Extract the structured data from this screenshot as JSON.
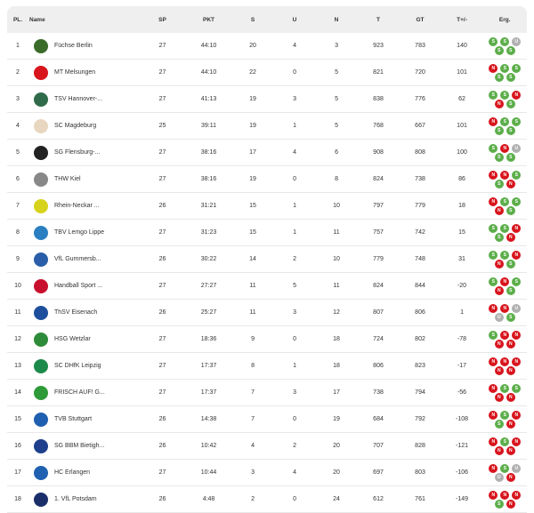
{
  "headers": {
    "pl": "PL.",
    "name": "Name",
    "sp": "SP",
    "pkt": "PKT",
    "s": "S",
    "u": "U",
    "n": "N",
    "t": "T",
    "gt": "GT",
    "diff": "T+/-",
    "erg": "Erg."
  },
  "colors": {
    "S": "#5cae4a",
    "N": "#d8141c",
    "U": "#b0b0b0"
  },
  "rows": [
    {
      "pl": "1",
      "name": "Füchse Berlin",
      "sp": "27",
      "pkt": "44:10",
      "s": "20",
      "u": "4",
      "n": "3",
      "t": "923",
      "gt": "783",
      "diff": "140",
      "form": [
        "S",
        "S",
        "U",
        "S",
        "S"
      ],
      "logo": "#3a6b2a"
    },
    {
      "pl": "2",
      "name": "MT Melsungen",
      "sp": "27",
      "pkt": "44:10",
      "s": "22",
      "u": "0",
      "n": "5",
      "t": "821",
      "gt": "720",
      "diff": "101",
      "form": [
        "N",
        "S",
        "S",
        "S",
        "S"
      ],
      "logo": "#d8141c"
    },
    {
      "pl": "3",
      "name": "TSV Hannover-...",
      "sp": "27",
      "pkt": "41:13",
      "s": "19",
      "u": "3",
      "n": "5",
      "t": "838",
      "gt": "776",
      "diff": "62",
      "form": [
        "S",
        "S",
        "N",
        "N",
        "S"
      ],
      "logo": "#2f6b4a"
    },
    {
      "pl": "4",
      "name": "SC Magdeburg",
      "sp": "25",
      "pkt": "39:11",
      "s": "19",
      "u": "1",
      "n": "5",
      "t": "768",
      "gt": "667",
      "diff": "101",
      "form": [
        "N",
        "S",
        "S",
        "S",
        "S"
      ],
      "logo": "#e9d6c0"
    },
    {
      "pl": "5",
      "name": "SG Flensburg-...",
      "sp": "27",
      "pkt": "38:16",
      "s": "17",
      "u": "4",
      "n": "6",
      "t": "908",
      "gt": "808",
      "diff": "100",
      "form": [
        "S",
        "N",
        "U",
        "S",
        "S"
      ],
      "logo": "#222"
    },
    {
      "pl": "6",
      "name": "THW Kiel",
      "sp": "27",
      "pkt": "38:16",
      "s": "19",
      "u": "0",
      "n": "8",
      "t": "824",
      "gt": "738",
      "diff": "86",
      "form": [
        "N",
        "N",
        "S",
        "S",
        "N"
      ],
      "logo": "#888"
    },
    {
      "pl": "7",
      "name": "Rhein-Neckar ...",
      "sp": "26",
      "pkt": "31:21",
      "s": "15",
      "u": "1",
      "n": "10",
      "t": "797",
      "gt": "779",
      "diff": "18",
      "form": [
        "N",
        "S",
        "S",
        "N",
        "S"
      ],
      "logo": "#d7d21c"
    },
    {
      "pl": "8",
      "name": "TBV Lemgo Lippe",
      "sp": "27",
      "pkt": "31:23",
      "s": "15",
      "u": "1",
      "n": "11",
      "t": "757",
      "gt": "742",
      "diff": "15",
      "form": [
        "S",
        "S",
        "N",
        "S",
        "N"
      ],
      "logo": "#2b7fc0"
    },
    {
      "pl": "9",
      "name": "VfL Gummersb...",
      "sp": "26",
      "pkt": "30:22",
      "s": "14",
      "u": "2",
      "n": "10",
      "t": "779",
      "gt": "748",
      "diff": "31",
      "form": [
        "S",
        "S",
        "N",
        "N",
        "S"
      ],
      "logo": "#2a5ea8"
    },
    {
      "pl": "10",
      "name": "Handball Sport ...",
      "sp": "27",
      "pkt": "27:27",
      "s": "11",
      "u": "5",
      "n": "11",
      "t": "824",
      "gt": "844",
      "diff": "-20",
      "form": [
        "S",
        "N",
        "S",
        "N",
        "S"
      ],
      "logo": "#c8102e"
    },
    {
      "pl": "11",
      "name": "ThSV Eisenach",
      "sp": "26",
      "pkt": "25:27",
      "s": "11",
      "u": "3",
      "n": "12",
      "t": "807",
      "gt": "806",
      "diff": "1",
      "form": [
        "N",
        "N",
        "U",
        "U",
        "S"
      ],
      "logo": "#1d4f9c"
    },
    {
      "pl": "12",
      "name": "HSG Wetzlar",
      "sp": "27",
      "pkt": "18:36",
      "s": "9",
      "u": "0",
      "n": "18",
      "t": "724",
      "gt": "802",
      "diff": "-78",
      "form": [
        "S",
        "N",
        "N",
        "N",
        "N"
      ],
      "logo": "#2e8b3a"
    },
    {
      "pl": "13",
      "name": "SC DHfK Leipzig",
      "sp": "27",
      "pkt": "17:37",
      "s": "8",
      "u": "1",
      "n": "18",
      "t": "806",
      "gt": "823",
      "diff": "-17",
      "form": [
        "N",
        "N",
        "N",
        "N",
        "N"
      ],
      "logo": "#1c8a4a"
    },
    {
      "pl": "14",
      "name": "FRISCH AUF! G...",
      "sp": "27",
      "pkt": "17:37",
      "s": "7",
      "u": "3",
      "n": "17",
      "t": "738",
      "gt": "794",
      "diff": "-56",
      "form": [
        "N",
        "S",
        "S",
        "N",
        "N"
      ],
      "logo": "#2f9a3a"
    },
    {
      "pl": "15",
      "name": "TVB Stuttgart",
      "sp": "26",
      "pkt": "14:38",
      "s": "7",
      "u": "0",
      "n": "19",
      "t": "684",
      "gt": "792",
      "diff": "-108",
      "form": [
        "N",
        "S",
        "N",
        "S",
        "N"
      ],
      "logo": "#1f5fb0"
    },
    {
      "pl": "16",
      "name": "SG BBM Bietigh...",
      "sp": "26",
      "pkt": "10:42",
      "s": "4",
      "u": "2",
      "n": "20",
      "t": "707",
      "gt": "828",
      "diff": "-121",
      "form": [
        "N",
        "S",
        "N",
        "N",
        "N"
      ],
      "logo": "#1d3f8c"
    },
    {
      "pl": "17",
      "name": "HC Erlangen",
      "sp": "27",
      "pkt": "10:44",
      "s": "3",
      "u": "4",
      "n": "20",
      "t": "697",
      "gt": "803",
      "diff": "-106",
      "form": [
        "N",
        "S",
        "U",
        "U",
        "N"
      ],
      "logo": "#2060b0"
    },
    {
      "pl": "18",
      "name": "1. VfL Potsdam",
      "sp": "26",
      "pkt": "4:48",
      "s": "2",
      "u": "0",
      "n": "24",
      "t": "612",
      "gt": "761",
      "diff": "-149",
      "form": [
        "N",
        "N",
        "N",
        "S",
        "N"
      ],
      "logo": "#1a2f6a"
    }
  ]
}
